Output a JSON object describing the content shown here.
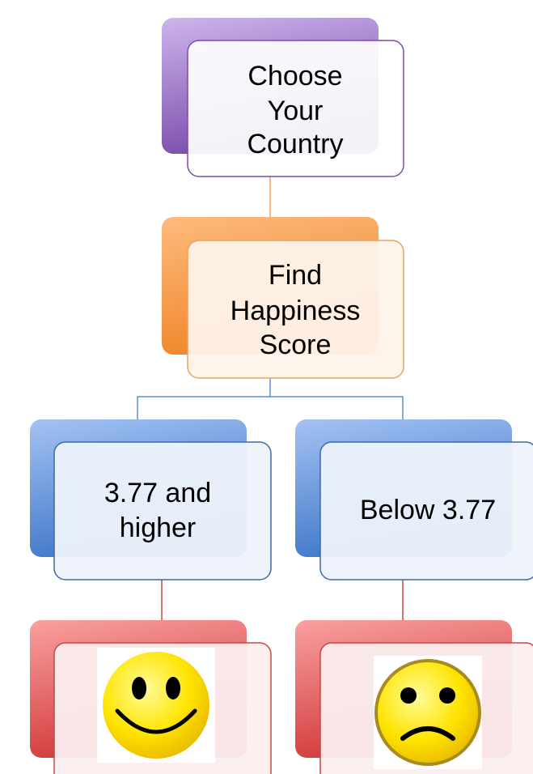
{
  "nodes": [
    {
      "lines": [
        "Choose",
        "Your",
        "Country"
      ]
    },
    {
      "lines": [
        "Find",
        "Happiness",
        "Score"
      ]
    },
    {
      "lines": [
        "3.77 and",
        "higher"
      ]
    },
    {
      "lines": [
        "Below 3.77"
      ]
    }
  ]
}
